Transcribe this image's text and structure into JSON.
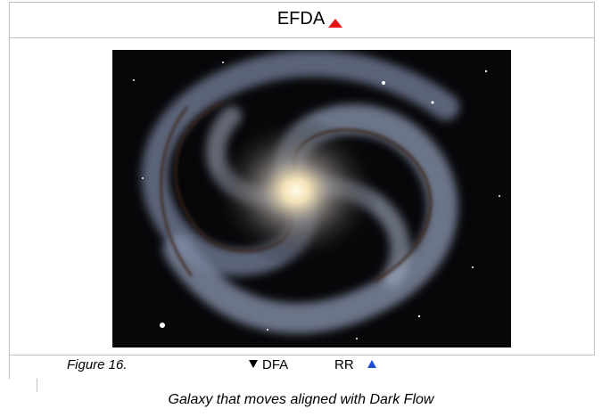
{
  "header": {
    "title": "EFDA"
  },
  "figure": {
    "label": "Figure 16.",
    "legend": [
      "DFA",
      "RR"
    ],
    "caption": "Galaxy that moves aligned with Dark Flow"
  }
}
